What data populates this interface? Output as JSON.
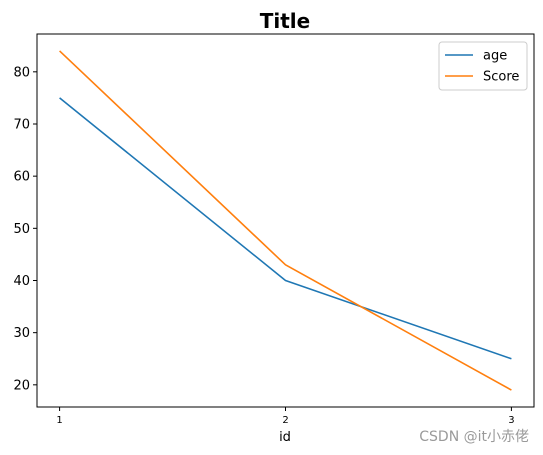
{
  "chart_data": {
    "type": "line",
    "title": "Title",
    "xlabel": "id",
    "ylabel": "",
    "x": [
      1,
      2,
      3
    ],
    "x_ticks": [
      "1",
      "2",
      "3"
    ],
    "y_ticks": [
      20,
      30,
      40,
      50,
      60,
      70,
      80
    ],
    "xlim": [
      0.9,
      3.1
    ],
    "ylim": [
      15.75,
      87.25
    ],
    "grid": false,
    "legend_position": "top-right",
    "series": [
      {
        "name": "age",
        "values": [
          75,
          40,
          25
        ],
        "color": "#1f77b4"
      },
      {
        "name": "Score",
        "values": [
          84,
          43,
          19
        ],
        "color": "#ff7f0e"
      }
    ]
  },
  "watermark": "CSDN @it小赤佬"
}
